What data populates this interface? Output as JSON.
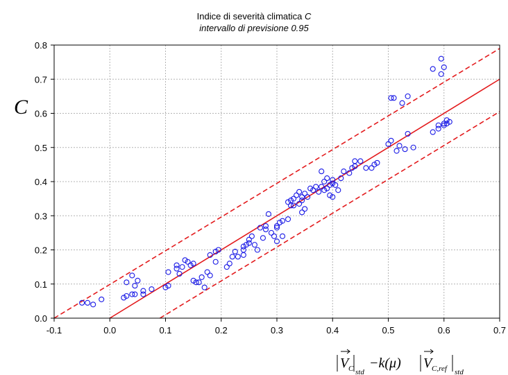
{
  "chart_data": {
    "type": "scatter",
    "title": "Indice di severità climatica",
    "title_var": "C",
    "subtitle": "intervallo di previsione 0.95",
    "ylabel": "C",
    "xlabel": {
      "left_bar_arrow_var": "V",
      "sub1": "C",
      "sub1_outer": "std",
      "middle": "−k(μ)",
      "right_arrow_var": "V",
      "sub2": "C,ref",
      "sub2_outer": "std"
    },
    "xlim": [
      -0.1,
      0.7
    ],
    "ylim": [
      0.0,
      0.8
    ],
    "x_ticks": [
      -0.1,
      0.0,
      0.1,
      0.2,
      0.3,
      0.4,
      0.5,
      0.6,
      0.7
    ],
    "y_ticks": [
      0.0,
      0.1,
      0.2,
      0.3,
      0.4,
      0.5,
      0.6,
      0.7,
      0.8
    ],
    "x_tick_labels": [
      "-0.1",
      "0.0",
      "0.1",
      "0.2",
      "0.3",
      "0.4",
      "0.5",
      "0.6",
      "0.7"
    ],
    "y_tick_labels": [
      "0.0",
      "0.1",
      "0.2",
      "0.3",
      "0.4",
      "0.5",
      "0.6",
      "0.7",
      "0.8"
    ],
    "grid": true,
    "colors": {
      "points": "#1a1ae6",
      "fit_line": "#e31a1c",
      "band": "#e31a1c",
      "grid": "#b4b4b4",
      "axis": "#000000"
    },
    "fit_line": {
      "x": [
        0.0,
        0.7
      ],
      "y": [
        0.0,
        0.7
      ]
    },
    "upper_band": {
      "x": [
        -0.1,
        0.7
      ],
      "y": [
        0.0,
        0.79
      ]
    },
    "lower_band": {
      "x": [
        0.09,
        0.7
      ],
      "y": [
        0.0,
        0.605
      ]
    },
    "series": [
      {
        "x": [
          -0.05,
          -0.04,
          -0.03,
          -0.015,
          0.025,
          0.03,
          0.03,
          0.04,
          0.04,
          0.045,
          0.045,
          0.05,
          0.06,
          0.06,
          0.075,
          0.1,
          0.105,
          0.105,
          0.12,
          0.12,
          0.125,
          0.13,
          0.135,
          0.14,
          0.145,
          0.15,
          0.15,
          0.155,
          0.16,
          0.165,
          0.17,
          0.175,
          0.18,
          0.18,
          0.19,
          0.19,
          0.195,
          0.21,
          0.215,
          0.22,
          0.225,
          0.23,
          0.24,
          0.24,
          0.24,
          0.245,
          0.25,
          0.25,
          0.255,
          0.26,
          0.265,
          0.27,
          0.275,
          0.28,
          0.28,
          0.285,
          0.29,
          0.295,
          0.3,
          0.3,
          0.3,
          0.305,
          0.31,
          0.31,
          0.32,
          0.32,
          0.325,
          0.325,
          0.33,
          0.33,
          0.335,
          0.34,
          0.34,
          0.345,
          0.345,
          0.345,
          0.35,
          0.35,
          0.355,
          0.36,
          0.365,
          0.37,
          0.375,
          0.38,
          0.38,
          0.385,
          0.385,
          0.39,
          0.39,
          0.395,
          0.395,
          0.4,
          0.4,
          0.4,
          0.405,
          0.41,
          0.415,
          0.42,
          0.43,
          0.435,
          0.44,
          0.44,
          0.45,
          0.46,
          0.47,
          0.475,
          0.48,
          0.5,
          0.505,
          0.505,
          0.51,
          0.515,
          0.52,
          0.525,
          0.53,
          0.535,
          0.535,
          0.545,
          0.58,
          0.58,
          0.59,
          0.59,
          0.595,
          0.595,
          0.6,
          0.6,
          0.6,
          0.605,
          0.605,
          0.61
        ],
        "y": [
          0.045,
          0.045,
          0.04,
          0.055,
          0.06,
          0.105,
          0.065,
          0.07,
          0.125,
          0.095,
          0.07,
          0.11,
          0.08,
          0.07,
          0.085,
          0.09,
          0.135,
          0.095,
          0.145,
          0.155,
          0.13,
          0.15,
          0.17,
          0.165,
          0.155,
          0.16,
          0.11,
          0.105,
          0.105,
          0.12,
          0.09,
          0.135,
          0.125,
          0.185,
          0.165,
          0.195,
          0.2,
          0.15,
          0.16,
          0.18,
          0.195,
          0.18,
          0.185,
          0.21,
          0.2,
          0.215,
          0.23,
          0.22,
          0.24,
          0.215,
          0.2,
          0.265,
          0.235,
          0.27,
          0.26,
          0.305,
          0.25,
          0.24,
          0.27,
          0.265,
          0.225,
          0.28,
          0.285,
          0.24,
          0.29,
          0.34,
          0.33,
          0.345,
          0.33,
          0.35,
          0.36,
          0.335,
          0.37,
          0.355,
          0.345,
          0.31,
          0.32,
          0.365,
          0.355,
          0.38,
          0.375,
          0.385,
          0.37,
          0.385,
          0.43,
          0.4,
          0.375,
          0.41,
          0.38,
          0.39,
          0.36,
          0.355,
          0.395,
          0.405,
          0.39,
          0.375,
          0.41,
          0.43,
          0.425,
          0.44,
          0.46,
          0.445,
          0.46,
          0.44,
          0.44,
          0.45,
          0.455,
          0.51,
          0.52,
          0.645,
          0.645,
          0.49,
          0.505,
          0.63,
          0.495,
          0.54,
          0.65,
          0.5,
          0.545,
          0.73,
          0.555,
          0.565,
          0.76,
          0.715,
          0.565,
          0.57,
          0.735,
          0.58,
          0.57,
          0.575
        ]
      }
    ]
  }
}
